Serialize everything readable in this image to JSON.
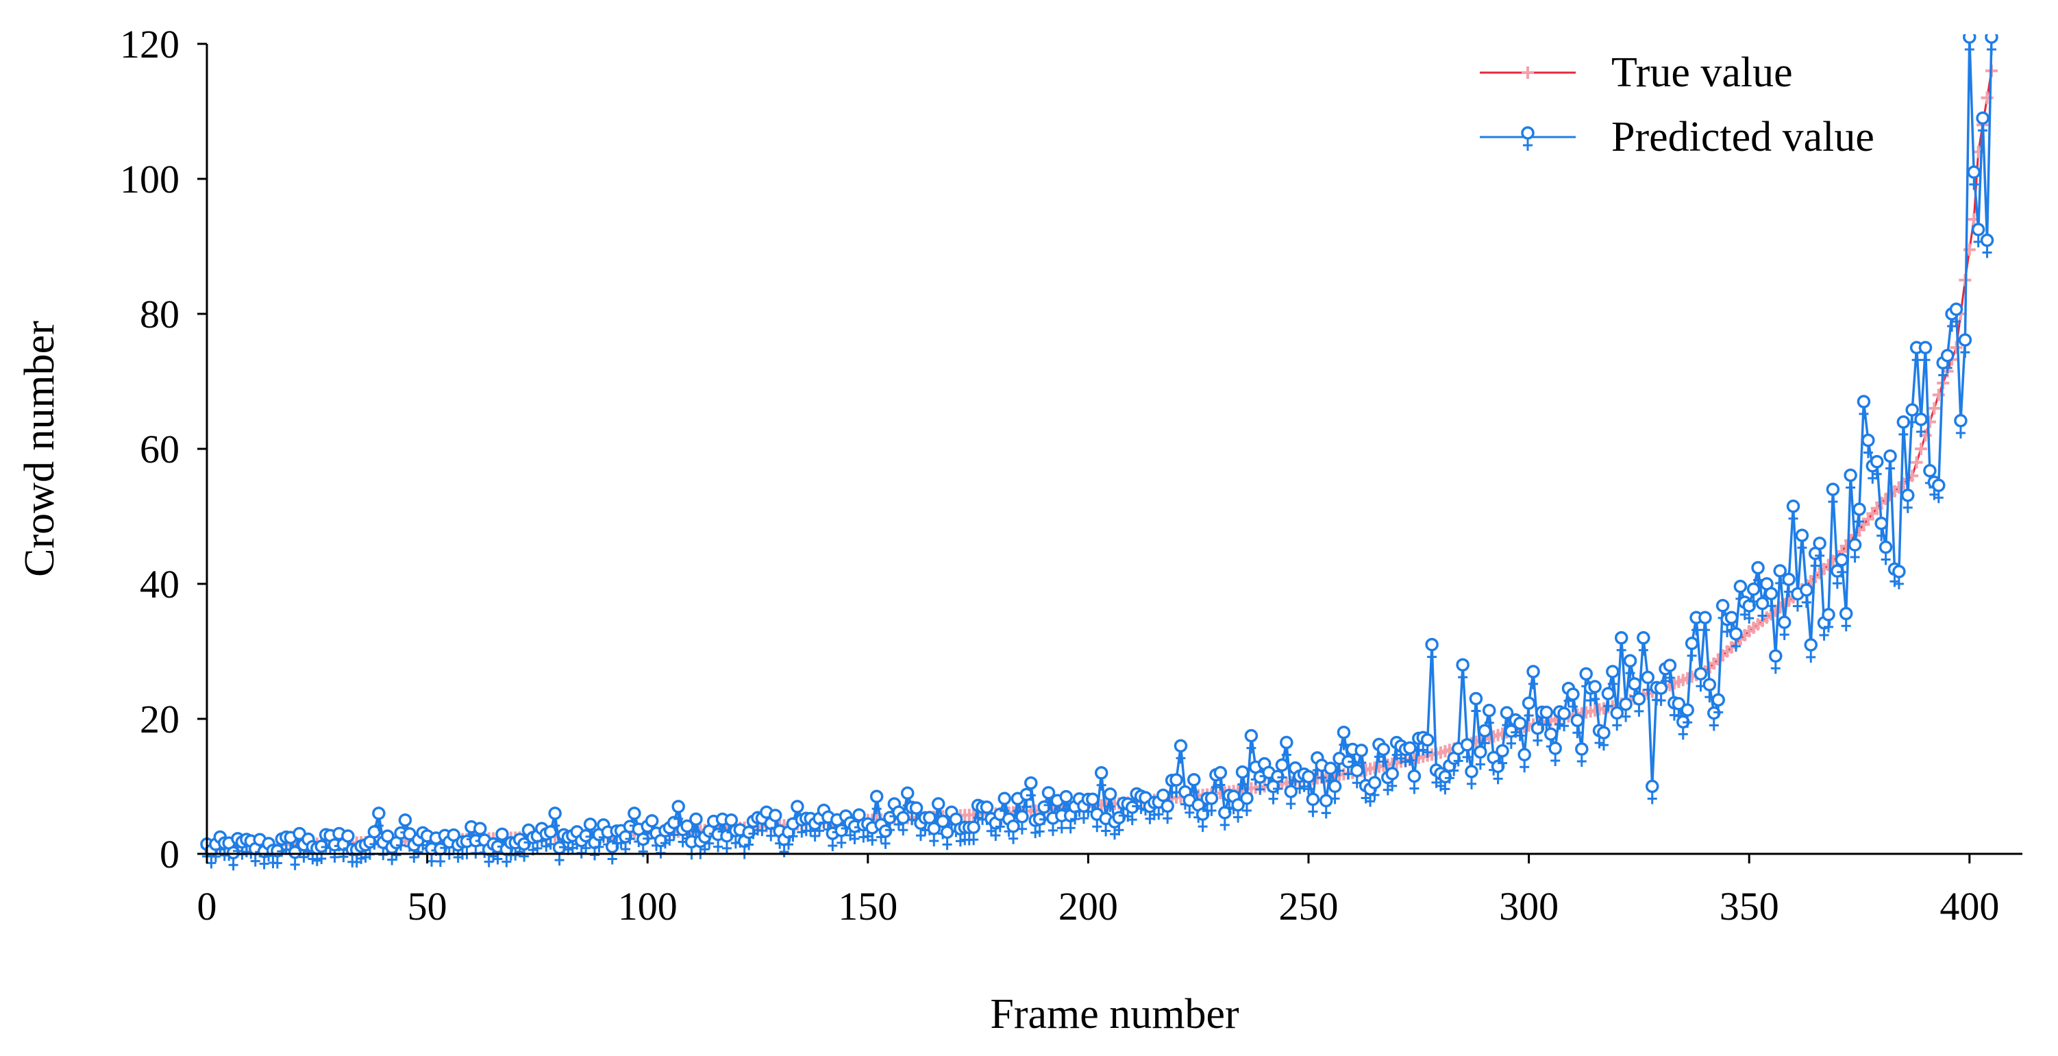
{
  "chart_data": {
    "type": "line",
    "title": "",
    "xlabel": "Frame number",
    "ylabel": "Crowd number",
    "xlim": [
      0,
      412
    ],
    "ylim": [
      0,
      120
    ],
    "xticks": [
      0,
      50,
      100,
      150,
      200,
      250,
      300,
      350,
      400
    ],
    "yticks": [
      0,
      20,
      40,
      60,
      80,
      100,
      120
    ],
    "xtick_labels": [
      "0",
      "50",
      "100",
      "150",
      "200",
      "250",
      "300",
      "350",
      "400"
    ],
    "ytick_labels": [
      "0",
      "20",
      "40",
      "60",
      "80",
      "100",
      "120"
    ],
    "grid": false,
    "legend_position": "top-right",
    "series": [
      {
        "name": "True value",
        "color": "#e8283a",
        "marker_color": "#f3a0aa",
        "marker": "plus",
        "knots": [
          [
            0,
            1
          ],
          [
            50,
            2
          ],
          [
            100,
            3
          ],
          [
            150,
            5
          ],
          [
            180,
            6
          ],
          [
            200,
            7
          ],
          [
            230,
            9
          ],
          [
            260,
            12
          ],
          [
            280,
            15
          ],
          [
            300,
            19
          ],
          [
            320,
            22
          ],
          [
            340,
            27
          ],
          [
            350,
            33
          ],
          [
            360,
            38
          ],
          [
            370,
            44
          ],
          [
            380,
            52
          ],
          [
            387,
            56
          ],
          [
            393,
            68
          ],
          [
            397,
            75
          ],
          [
            399,
            85
          ],
          [
            401,
            94
          ],
          [
            402,
            104
          ],
          [
            404,
            112
          ],
          [
            405,
            116
          ]
        ]
      },
      {
        "name": "Predicted value",
        "color": "#1f7de6",
        "marker": "venus",
        "anchors": [
          [
            21,
            3
          ],
          [
            30,
            3
          ],
          [
            39,
            6
          ],
          [
            45,
            5
          ],
          [
            60,
            4
          ],
          [
            79,
            6
          ],
          [
            97,
            6
          ],
          [
            107,
            7
          ],
          [
            134,
            7
          ],
          [
            152,
            8.5
          ],
          [
            159,
            9
          ],
          [
            187,
            10.5
          ],
          [
            203,
            12
          ],
          [
            221,
            16
          ],
          [
            237,
            17.5
          ],
          [
            245,
            16.5
          ],
          [
            258,
            18
          ],
          [
            278,
            31
          ],
          [
            285,
            28
          ],
          [
            288,
            23
          ],
          [
            301,
            27
          ],
          [
            309,
            24.5
          ],
          [
            321,
            32
          ],
          [
            326,
            32
          ],
          [
            328,
            10
          ],
          [
            338,
            35
          ],
          [
            340,
            35
          ],
          [
            346,
            35
          ],
          [
            354,
            40
          ],
          [
            360,
            51.5
          ],
          [
            366,
            46
          ],
          [
            376,
            67
          ],
          [
            388,
            75
          ],
          [
            390,
            75
          ],
          [
            396,
            80
          ],
          [
            400,
            121
          ],
          [
            401,
            101
          ],
          [
            403,
            109
          ],
          [
            405,
            121
          ]
        ]
      }
    ]
  },
  "legend": {
    "items": [
      "True value",
      "Predicted value"
    ]
  }
}
